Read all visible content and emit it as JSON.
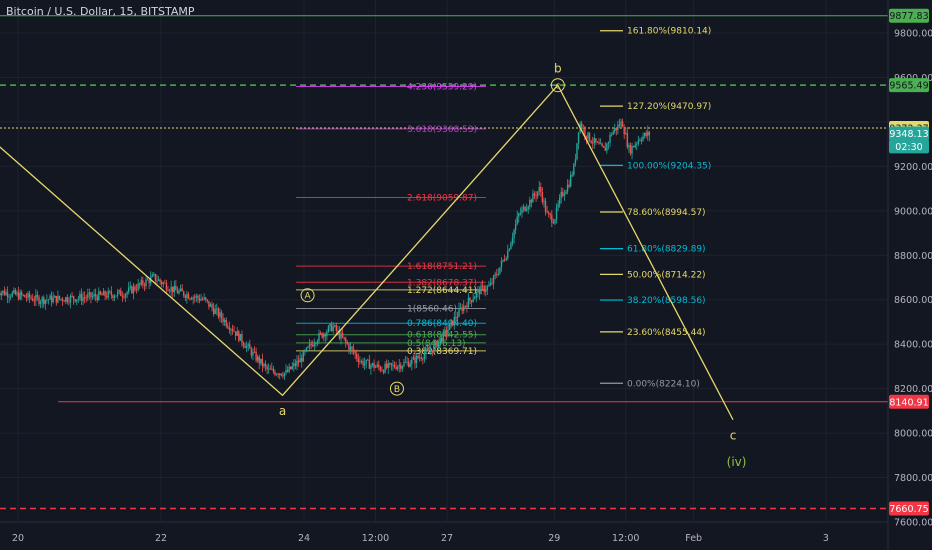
{
  "title": "Bitcoin / U.S. Dollar, 15, BITSTAMP",
  "chart_data": {
    "type": "candlestick",
    "symbol": "Bitcoin / U.S. Dollar",
    "interval": "15",
    "exchange": "BITSTAMP",
    "ylim": [
      7600,
      9900
    ],
    "xlim": [
      -0.3,
      10.2
    ],
    "y_ticks": [
      7600,
      7800,
      8000,
      8200,
      8400,
      8600,
      8800,
      9000,
      9200,
      9400,
      9600,
      9800
    ],
    "y_tick_labels": [
      "7600.00",
      "7800.00",
      "8000.00",
      "8200.00",
      "8400.00",
      "8600.00",
      "8800.00",
      "9000.00",
      "9200.00",
      "",
      "9600.00",
      "9800.00"
    ],
    "x_ticks": [
      {
        "t": 0,
        "label": "20"
      },
      {
        "t": 2,
        "label": "22"
      },
      {
        "t": 4,
        "label": "24"
      },
      {
        "t": 5,
        "label": "12:00"
      },
      {
        "t": 6,
        "label": "27"
      },
      {
        "t": 7.5,
        "label": "29"
      },
      {
        "t": 8.5,
        "label": "12:00"
      },
      {
        "t": 9.45,
        "label": "Feb"
      },
      {
        "t": 11.3,
        "label": "3"
      },
      {
        "t": 12.3,
        "label": "12:00"
      }
    ],
    "price_path": [
      [
        -0.3,
        8640
      ],
      [
        0.3,
        8600
      ],
      [
        0.9,
        8610
      ],
      [
        1.5,
        8630
      ],
      [
        1.9,
        8700
      ],
      [
        2.2,
        8640
      ],
      [
        2.6,
        8600
      ],
      [
        3.0,
        8470
      ],
      [
        3.3,
        8350
      ],
      [
        3.5,
        8280
      ],
      [
        3.75,
        8270
      ],
      [
        3.95,
        8330
      ],
      [
        4.15,
        8420
      ],
      [
        4.4,
        8480
      ],
      [
        4.6,
        8400
      ],
      [
        4.8,
        8320
      ],
      [
        5.1,
        8290
      ],
      [
        5.5,
        8320
      ],
      [
        5.8,
        8380
      ],
      [
        6.0,
        8460
      ],
      [
        6.2,
        8560
      ],
      [
        6.45,
        8640
      ],
      [
        6.6,
        8660
      ],
      [
        6.7,
        8720
      ],
      [
        6.85,
        8820
      ],
      [
        7.0,
        8980
      ],
      [
        7.15,
        9040
      ],
      [
        7.3,
        9100
      ],
      [
        7.4,
        8980
      ],
      [
        7.5,
        8960
      ],
      [
        7.6,
        9070
      ],
      [
        7.7,
        9120
      ],
      [
        7.78,
        9200
      ],
      [
        7.85,
        9400
      ],
      [
        7.95,
        9340
      ],
      [
        8.05,
        9310
      ],
      [
        8.2,
        9270
      ],
      [
        8.3,
        9350
      ],
      [
        8.45,
        9400
      ],
      [
        8.55,
        9270
      ],
      [
        8.7,
        9330
      ],
      [
        8.85,
        9348
      ]
    ],
    "wave_lines": [
      {
        "points": [
          [
            -0.3,
            9300
          ],
          [
            3.7,
            8170
          ],
          [
            7.55,
            9565
          ],
          [
            10.0,
            8060
          ]
        ],
        "color": "#e6d96b"
      }
    ],
    "wave_labels": [
      {
        "text": "a",
        "t": 3.7,
        "y": 8100,
        "circled": false
      },
      {
        "text": "A",
        "t": 4.05,
        "y": 8620,
        "circled": true
      },
      {
        "text": "B",
        "t": 5.3,
        "y": 8200,
        "circled": true
      },
      {
        "text": "b",
        "t": 7.55,
        "y": 9640,
        "circled": false
      },
      {
        "text": "c",
        "t": 7.55,
        "y": 9565,
        "circled": true
      },
      {
        "text": "c",
        "t": 10.0,
        "y": 7990,
        "circled": false
      },
      {
        "text": "(iv)",
        "t": 10.05,
        "y": 7870,
        "circled": false
      }
    ],
    "extension_levels": [
      {
        "label": "4.236(9559.29)",
        "value": 9559.29,
        "color": "#e040fb"
      },
      {
        "label": "3.618(9368.53)",
        "value": 9368.53,
        "color": "#ab47bc"
      },
      {
        "label": "2.618(9059.87)",
        "value": 9059.87,
        "color": "#f23645"
      },
      {
        "label": "1.618(8751.21)",
        "value": 8751.21,
        "color": "#f23645"
      },
      {
        "label": "1.382(8678.37)",
        "value": 8678.37,
        "color": "#f23645"
      },
      {
        "label": "1.272(8644.41)",
        "value": 8644.41,
        "color": "#e6d96b"
      },
      {
        "label": "1(8560.46)",
        "value": 8560.46,
        "color": "#9598a1"
      },
      {
        "label": "0.786(8494.40)",
        "value": 8494.4,
        "color": "#00bcd4"
      },
      {
        "label": "0.618(8442.55)",
        "value": 8442.55,
        "color": "#4caf50"
      },
      {
        "label": "0.5(8406.13)",
        "value": 8406.13,
        "color": "#4caf50"
      },
      {
        "label": "0.382(8369.71)",
        "value": 8369.71,
        "color": "#e6d96b"
      }
    ],
    "retracement_levels": [
      {
        "label": "161.80%(9810.14)",
        "value": 9810.14,
        "color": "#e6d96b"
      },
      {
        "label": "127.20%(9470.97)",
        "value": 9470.97,
        "color": "#e6d96b"
      },
      {
        "label": "100.00%(9204.35)",
        "value": 9204.35,
        "color": "#00bcd4"
      },
      {
        "label": "78.60%(8994.57)",
        "value": 8994.57,
        "color": "#e6d96b"
      },
      {
        "label": "61.80%(8829.89)",
        "value": 8829.89,
        "color": "#00bcd4"
      },
      {
        "label": "50.00%(8714.22)",
        "value": 8714.22,
        "color": "#e6d96b"
      },
      {
        "label": "38.20%(8598.56)",
        "value": 8598.56,
        "color": "#00bcd4"
      },
      {
        "label": "23.60%(8455.44)",
        "value": 8455.44,
        "color": "#e6d96b"
      },
      {
        "label": "0.00%(8224.10)",
        "value": 8224.1,
        "color": "#9598a1"
      }
    ],
    "horizontal_lines": [
      {
        "value": 9877.83,
        "color": "#4caf50",
        "style": "solid"
      },
      {
        "value": 9565.49,
        "color": "#4caf50",
        "style": "dashed"
      },
      {
        "value": 9372.37,
        "color": "#e6d96b",
        "style": "dotted"
      },
      {
        "value": 8140.91,
        "color": "#f23645",
        "style": "solid"
      },
      {
        "value": 7660.75,
        "color": "#f23645",
        "style": "dashed"
      }
    ],
    "price_badges": [
      {
        "label": "9877.83",
        "value": 9877.83,
        "bg": "#4caf50",
        "fg": "#131722"
      },
      {
        "label": "9565.49",
        "value": 9565.49,
        "bg": "#4caf50",
        "fg": "#131722"
      },
      {
        "label": "9372.37",
        "value": 9372.37,
        "bg": "#e6d96b",
        "fg": "#131722"
      },
      {
        "label": "9348.13",
        "value": 9348.13,
        "bg": "#26a69a",
        "fg": "#ffffff"
      },
      {
        "label": "02:30",
        "value": 9290,
        "bg": "#26a69a",
        "fg": "#ffffff"
      },
      {
        "label": "8140.91",
        "value": 8140.91,
        "bg": "#f23645",
        "fg": "#ffffff"
      },
      {
        "label": "7660.75",
        "value": 7660.75,
        "bg": "#f23645",
        "fg": "#ffffff"
      }
    ]
  }
}
